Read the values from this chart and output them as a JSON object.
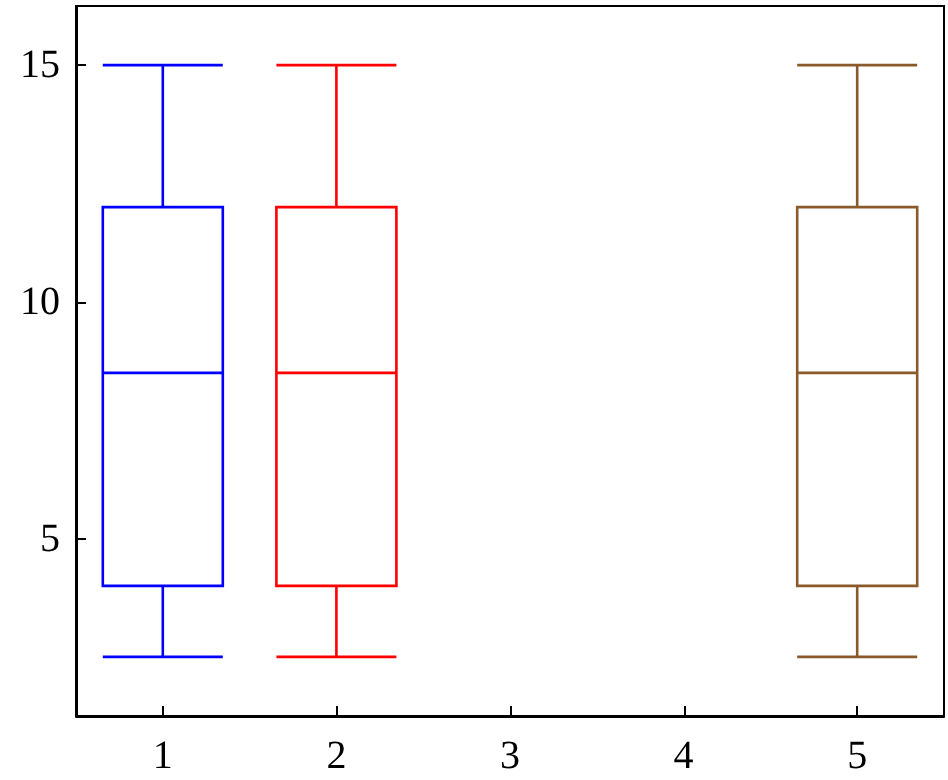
{
  "chart_data": {
    "type": "box",
    "categories": [
      "1",
      "2",
      "3",
      "4",
      "5"
    ],
    "boxes": [
      {
        "low": 2.5,
        "q1": 4,
        "median": 8.5,
        "q3": 12,
        "high": 15
      },
      {
        "low": 2.5,
        "q1": 4,
        "median": 8.5,
        "q3": 12,
        "high": 15
      },
      null,
      null,
      {
        "low": 2.5,
        "q1": 4,
        "median": 8.5,
        "q3": 12,
        "high": 15
      }
    ],
    "colors": [
      "#0000ff",
      "#ff0000",
      null,
      null,
      "#8b5a2b"
    ],
    "ylim": [
      1.25,
      16.25
    ],
    "yticks": [
      5,
      10,
      15
    ]
  }
}
